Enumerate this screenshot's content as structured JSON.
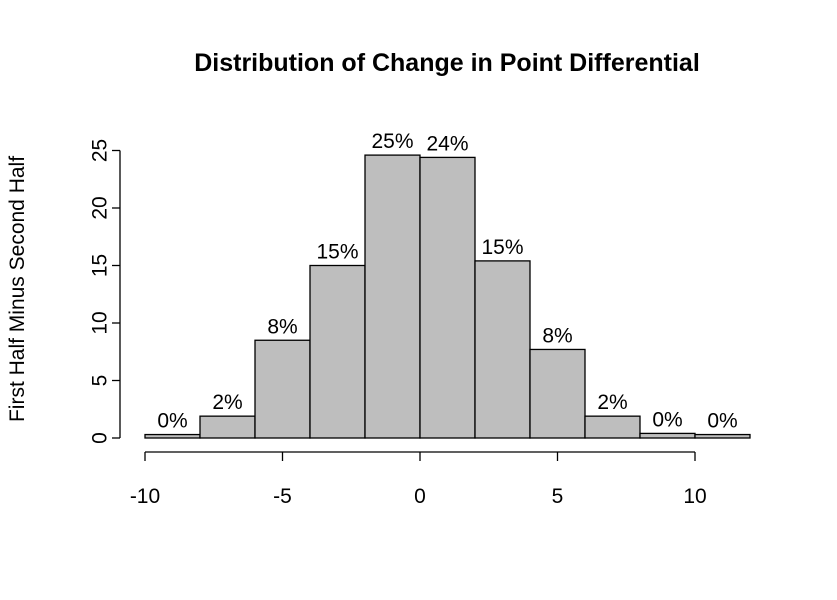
{
  "chart_data": {
    "type": "bar",
    "title": "Distribution of Change in Point Differential",
    "xlabel": "",
    "ylabel": "First Half Minus Second Half",
    "bin_edges": [
      -10,
      -8,
      -6,
      -4,
      -2,
      0,
      2,
      4,
      6,
      8,
      10,
      12
    ],
    "values": [
      0.3,
      1.9,
      8.5,
      15.0,
      24.6,
      24.4,
      15.4,
      7.7,
      1.9,
      0.4,
      0.3
    ],
    "labels": [
      "0%",
      "2%",
      "8%",
      "15%",
      "25%",
      "24%",
      "15%",
      "8%",
      "2%",
      "0%",
      "0%"
    ],
    "xticks": [
      -10,
      -5,
      0,
      5,
      10
    ],
    "xtick_labels": [
      "-10",
      "-5",
      "0",
      "5",
      "10"
    ],
    "yticks": [
      0,
      5,
      10,
      15,
      20,
      25
    ],
    "ytick_labels": [
      "0",
      "5",
      "10",
      "15",
      "20",
      "25"
    ],
    "xlim": [
      -10,
      12
    ],
    "ylim": [
      0,
      25
    ],
    "grid": false,
    "colors": {
      "bar_fill": "#bebebe",
      "bar_stroke": "#000000"
    }
  }
}
